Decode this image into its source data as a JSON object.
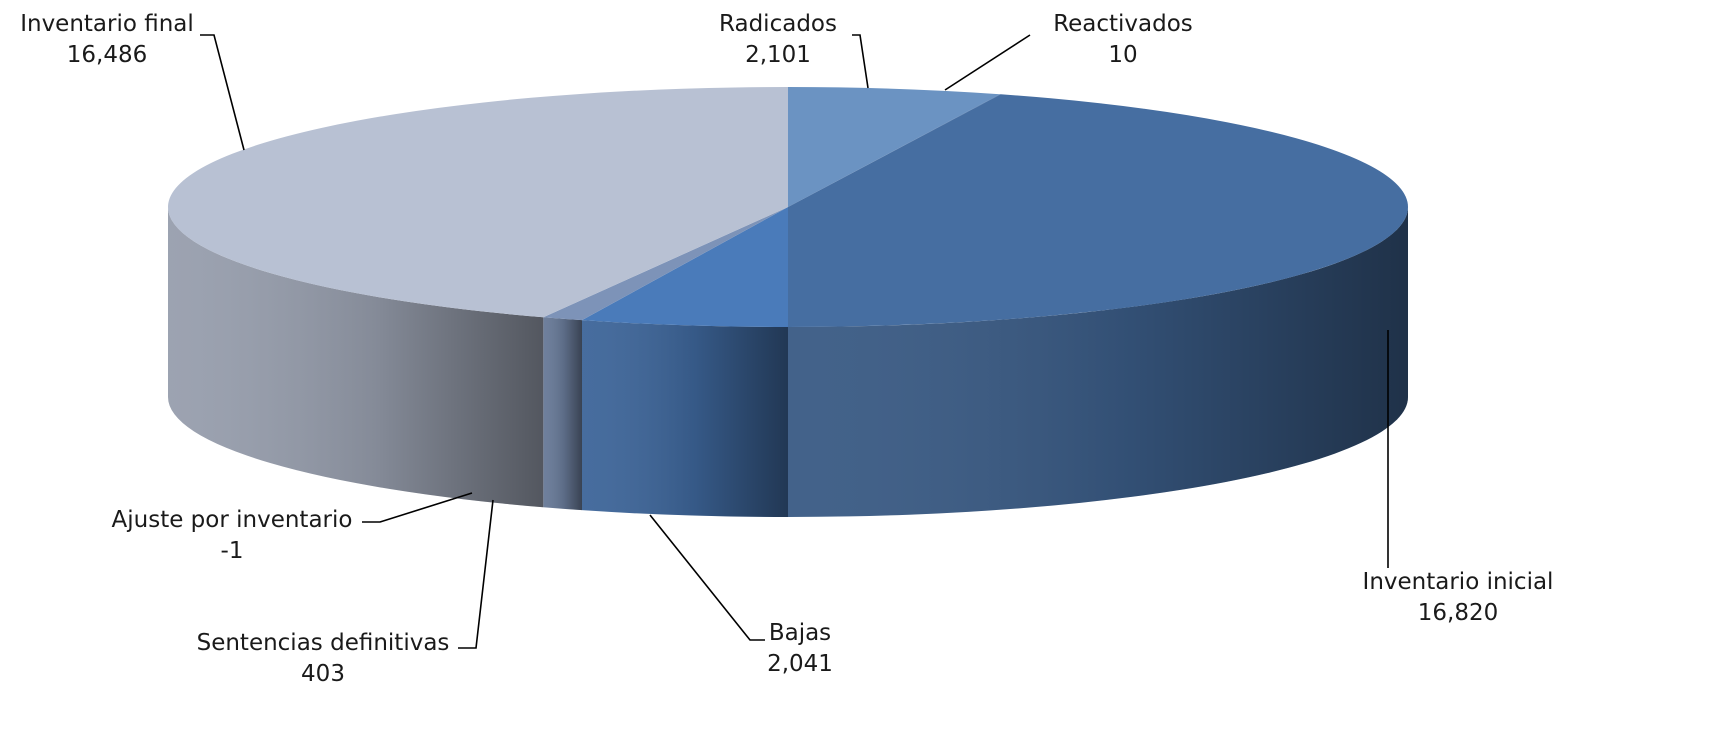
{
  "chart_data": {
    "type": "pie",
    "variant": "3d",
    "title": "",
    "legend": "none",
    "slices": [
      {
        "label": "Radicados",
        "value": 2101,
        "value_text": "2,101",
        "color": "#6b93c2"
      },
      {
        "label": "Reactivados",
        "value": 10,
        "value_text": "10",
        "color": "#4a76ad"
      },
      {
        "label": "Inventario inicial",
        "value": 16820,
        "value_text": "16,820",
        "color": "#466ea1"
      },
      {
        "label": "Bajas",
        "value": 2041,
        "value_text": "2,041",
        "color": "#4a7bba"
      },
      {
        "label": "Sentencias definitivas",
        "value": 403,
        "value_text": "403",
        "color": "#7d93b8"
      },
      {
        "label": "Ajuste por inventario",
        "value": -1,
        "value_text": "-1",
        "color": "#8ea2c4"
      },
      {
        "label": "Inventario final",
        "value": 16486,
        "value_text": "16,486",
        "color": "#b8c1d3"
      }
    ]
  }
}
